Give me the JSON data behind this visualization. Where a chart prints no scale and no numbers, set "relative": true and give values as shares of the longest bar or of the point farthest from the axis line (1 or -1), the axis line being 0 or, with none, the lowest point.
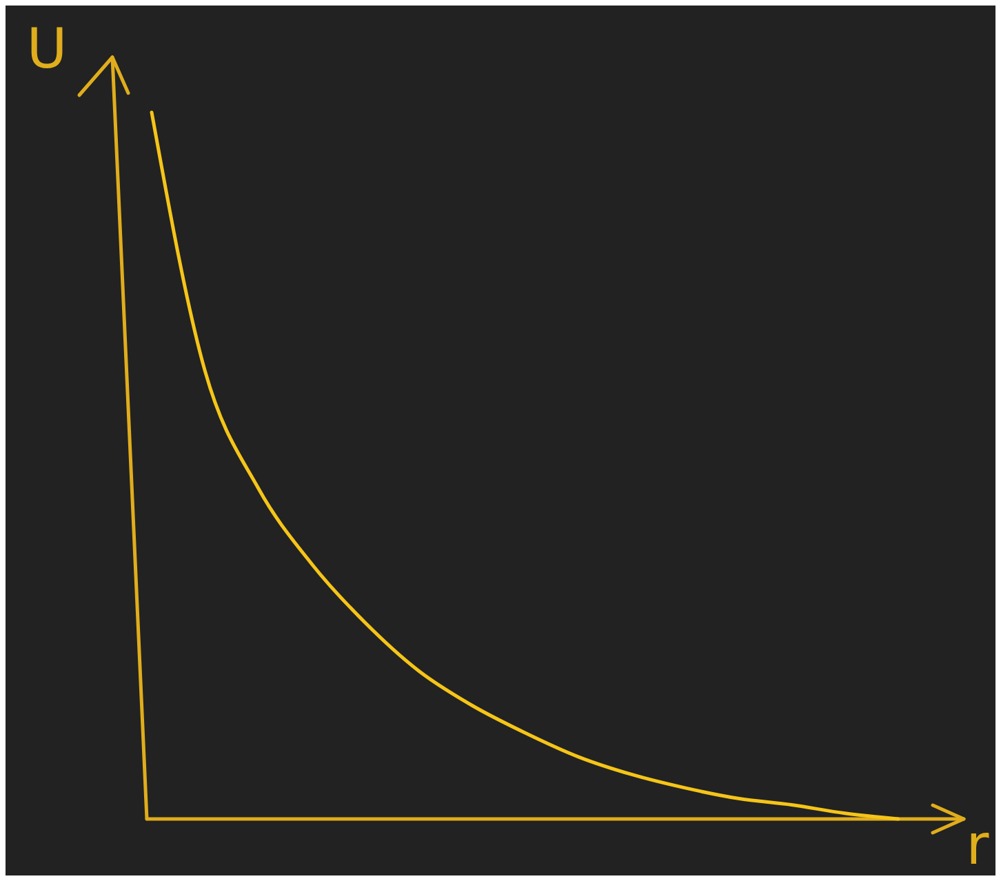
{
  "chart_data": {
    "type": "line",
    "relative": true,
    "xlabel": "r",
    "ylabel": "U",
    "categories": [
      null,
      null,
      null,
      null,
      null,
      null,
      null,
      null,
      null,
      null,
      null,
      null,
      null,
      null,
      null
    ],
    "series": [
      {
        "color": "#f5c518",
        "values": [
          1,
          0.634,
          0.468,
          0.361,
          0.278,
          0.21,
          0.161,
          0.122,
          0.088,
          0.063,
          0.044,
          0.029,
          0.02,
          0.008,
          0
        ]
      }
    ]
  }
}
